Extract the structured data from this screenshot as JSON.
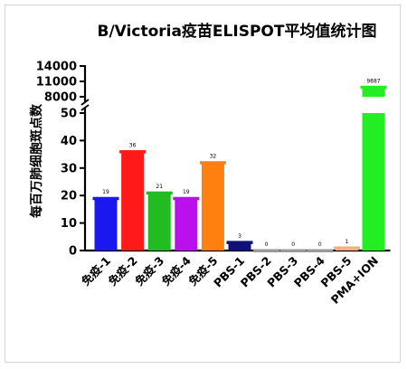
{
  "chart_data": {
    "type": "bar",
    "title": "B/Victoria疫苗ELISPOT平均值统计图",
    "xlabel": "",
    "ylabel": "每百万肺细胞斑点数",
    "categories": [
      "免疫-1",
      "免疫-2",
      "免疫-3",
      "免疫-4",
      "免疫-5",
      "PBS-1",
      "PBS-2",
      "PBS-3",
      "PBS-4",
      "PBS-5",
      "PMA+ION"
    ],
    "values": [
      19,
      36,
      21,
      19,
      32,
      3,
      0,
      0,
      0,
      1,
      9887
    ],
    "value_labels": [
      "19",
      "36",
      "21",
      "19",
      "32",
      "3",
      "0",
      "0",
      "0",
      "1",
      "9887"
    ],
    "colors": [
      "#1a17f0",
      "#ff1a1a",
      "#22bb22",
      "#bb10ee",
      "#ff8010",
      "#10107a",
      "#999999",
      "#999999",
      "#999999",
      "#ffb07a",
      "#22ee22"
    ],
    "axis_break": true,
    "lower_segment": {
      "ylim": [
        0,
        50
      ],
      "ticks": [
        0,
        10,
        20,
        30,
        40,
        50
      ]
    },
    "upper_segment": {
      "ylim": [
        8000,
        14000
      ],
      "ticks": [
        8000,
        11000,
        14000
      ]
    },
    "grid": false,
    "legend": "none",
    "colors_accent": {
      "axis": "#000000"
    }
  }
}
